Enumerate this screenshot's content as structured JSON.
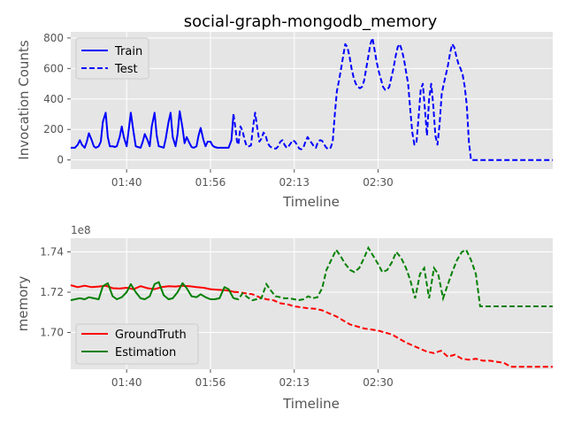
{
  "chart_data": [
    {
      "type": "line",
      "title": "social-graph-mongodb_memory",
      "xlabel": "Timeline",
      "ylabel": "Invocation Counts",
      "xtick_labels": [
        "01:40",
        "01:56",
        "02:13",
        "02:30"
      ],
      "yticks": [
        0,
        200,
        400,
        600,
        800
      ],
      "ylim": [
        -60,
        840
      ],
      "legend": {
        "position": "top-left"
      },
      "series": [
        {
          "name": "Train",
          "color": "#0000ff",
          "style": "solid",
          "x": [
            0,
            3,
            6,
            10,
            13,
            16,
            20,
            23,
            26,
            30,
            33,
            36,
            40,
            43,
            46,
            50,
            53,
            56,
            60,
            63,
            66,
            70,
            73,
            76,
            80,
            83,
            86,
            90,
            93,
            96,
            100,
            103,
            106,
            110,
            113,
            116,
            120,
            123,
            126,
            130,
            133,
            136,
            140,
            143,
            146,
            150,
            153,
            156,
            160,
            163,
            166,
            170,
            173,
            176,
            180,
            183,
            186,
            190,
            193,
            196,
            200,
            203,
            206,
            210,
            213,
            216,
            220,
            223,
            226,
            230,
            233
          ],
          "y": [
            80,
            80,
            80,
            100,
            130,
            100,
            80,
            120,
            175,
            130,
            90,
            80,
            90,
            120,
            250,
            310,
            150,
            90,
            90,
            85,
            90,
            150,
            220,
            150,
            90,
            200,
            310,
            180,
            90,
            85,
            80,
            120,
            170,
            130,
            90,
            220,
            310,
            160,
            90,
            85,
            80,
            140,
            250,
            310,
            150,
            90,
            170,
            320,
            210,
            110,
            150,
            110,
            85,
            80,
            90,
            160,
            210,
            130,
            90,
            120,
            120,
            95,
            85,
            80,
            80,
            80,
            80,
            80,
            80,
            130,
            300
          ]
        },
        {
          "name": "Test",
          "color": "#0000ff",
          "style": "dashed",
          "x": [
            233,
            236,
            238,
            240,
            243,
            246,
            249,
            252,
            255,
            258,
            261,
            264,
            267,
            270,
            273,
            276,
            279,
            282,
            285,
            288,
            291,
            294,
            297,
            300,
            303,
            306,
            309,
            312,
            315,
            318,
            321,
            324,
            327,
            330,
            333,
            336,
            339,
            342,
            345,
            348,
            351,
            354,
            357,
            360,
            363,
            366,
            369,
            372,
            375,
            378,
            381,
            384,
            387,
            390,
            393,
            396,
            399,
            402,
            405,
            408,
            411,
            414,
            417,
            420,
            423,
            426,
            429,
            432,
            435,
            438,
            441,
            444,
            447,
            450,
            453,
            456,
            459,
            462,
            465,
            468,
            471,
            474,
            477,
            480,
            483,
            486,
            489,
            492,
            495,
            498,
            501,
            504,
            507,
            510,
            513,
            516,
            519,
            522,
            525,
            528,
            531,
            534,
            537,
            540,
            543,
            546,
            549,
            552,
            555,
            558,
            561,
            564,
            567,
            570,
            573,
            576,
            579,
            582,
            585,
            588,
            591,
            594,
            597,
            600,
            603,
            606,
            609,
            612,
            615,
            618,
            621,
            624,
            627,
            630,
            633,
            636,
            639,
            642,
            645,
            648,
            651,
            654,
            657,
            660,
            663,
            666,
            669,
            672,
            675,
            678,
            681,
            684,
            687,
            690
          ],
          "y": [
            300,
            200,
            120,
            100,
            220,
            190,
            130,
            90,
            90,
            95,
            220,
            310,
            210,
            120,
            140,
            180,
            160,
            110,
            90,
            80,
            75,
            75,
            90,
            120,
            130,
            100,
            80,
            90,
            110,
            130,
            120,
            100,
            75,
            70,
            80,
            120,
            150,
            130,
            110,
            90,
            80,
            120,
            130,
            125,
            100,
            80,
            70,
            80,
            120,
            300,
            450,
            520,
            600,
            680,
            760,
            740,
            680,
            600,
            540,
            500,
            480,
            470,
            480,
            520,
            600,
            680,
            760,
            800,
            720,
            640,
            580,
            530,
            480,
            460,
            460,
            480,
            540,
            600,
            680,
            740,
            760,
            720,
            660,
            580,
            500,
            330,
            180,
            100,
            120,
            280,
            460,
            500,
            330,
            160,
            400,
            500,
            360,
            160,
            100,
            230,
            430,
            500,
            560,
            620,
            700,
            760,
            740,
            680,
            630,
            600,
            560,
            480,
            360,
            120,
            0,
            0,
            0,
            0,
            0,
            0,
            0,
            0,
            0,
            0,
            0,
            0,
            0,
            0,
            0,
            0,
            0,
            0,
            0,
            0,
            0,
            0,
            0,
            0,
            0,
            0,
            0,
            0,
            0,
            0,
            0,
            0,
            0,
            0,
            0,
            0,
            0,
            0,
            0,
            0
          ]
        }
      ]
    },
    {
      "type": "line",
      "title": "",
      "xlabel": "Timeline",
      "ylabel": "memory",
      "y_offset_label": "1e8",
      "xtick_labels": [
        "01:40",
        "01:56",
        "02:13",
        "02:30"
      ],
      "ytick_labels": [
        "1.70",
        "1.72",
        "1.74"
      ],
      "yticks": [
        1.7,
        1.72,
        1.74
      ],
      "ylim": [
        1.6818,
        1.7468
      ],
      "legend": {
        "position": "bottom-left"
      },
      "series": [
        {
          "name": "GroundTruth",
          "color": "#ff0000",
          "style": "solid_then_dashed",
          "solid_until_x": 233,
          "x": [
            0,
            10,
            20,
            30,
            40,
            50,
            60,
            70,
            80,
            90,
            100,
            110,
            120,
            130,
            140,
            150,
            160,
            170,
            180,
            190,
            200,
            210,
            220,
            230,
            233,
            240,
            250,
            260,
            270,
            280,
            290,
            300,
            310,
            320,
            330,
            340,
            350,
            360,
            370,
            380,
            390,
            400,
            410,
            420,
            430,
            440,
            450,
            460,
            470,
            480,
            490,
            500,
            510,
            520,
            530,
            540,
            550,
            560,
            570,
            580,
            590,
            600,
            610,
            620,
            630,
            640,
            650,
            660,
            670,
            680,
            690
          ],
          "y": [
            1.7235,
            1.7225,
            1.7232,
            1.7225,
            1.7228,
            1.7232,
            1.722,
            1.7218,
            1.7222,
            1.7215,
            1.723,
            1.722,
            1.7215,
            1.7225,
            1.723,
            1.7228,
            1.7232,
            1.723,
            1.7225,
            1.7222,
            1.7215,
            1.7212,
            1.721,
            1.7205,
            1.7202,
            1.72,
            1.7195,
            1.719,
            1.7175,
            1.7165,
            1.716,
            1.7145,
            1.714,
            1.713,
            1.7125,
            1.712,
            1.7118,
            1.711,
            1.7095,
            1.708,
            1.706,
            1.704,
            1.703,
            1.702,
            1.7015,
            1.701,
            1.7,
            1.699,
            1.697,
            1.695,
            1.6935,
            1.692,
            1.6905,
            1.6898,
            1.691,
            1.688,
            1.689,
            1.687,
            1.6865,
            1.687,
            1.686,
            1.686,
            1.6855,
            1.685,
            1.683,
            1.683,
            1.683,
            1.683,
            1.683,
            1.683,
            1.683
          ]
        },
        {
          "name": "Estimation",
          "color": "#008000",
          "style": "solid_then_dashed",
          "solid_until_x": 233,
          "x": [
            0,
            6,
            13,
            20,
            26,
            33,
            40,
            46,
            53,
            60,
            66,
            73,
            80,
            86,
            93,
            100,
            106,
            113,
            120,
            126,
            133,
            140,
            146,
            153,
            160,
            166,
            173,
            180,
            186,
            193,
            200,
            206,
            213,
            220,
            226,
            233,
            240,
            246,
            253,
            260,
            266,
            273,
            280,
            286,
            293,
            300,
            306,
            313,
            320,
            326,
            333,
            340,
            346,
            353,
            360,
            366,
            373,
            380,
            386,
            393,
            400,
            406,
            413,
            420,
            426,
            433,
            440,
            446,
            453,
            460,
            466,
            473,
            480,
            486,
            493,
            500,
            506,
            513,
            520,
            526,
            533,
            540,
            546,
            553,
            560,
            566,
            573,
            580,
            586,
            593,
            600,
            606,
            613,
            620,
            626,
            633,
            640,
            646,
            653,
            660,
            666,
            673,
            680,
            686,
            690
          ],
          "y": [
            1.716,
            1.7165,
            1.717,
            1.7165,
            1.7175,
            1.717,
            1.7165,
            1.723,
            1.7245,
            1.718,
            1.7165,
            1.7175,
            1.72,
            1.724,
            1.72,
            1.717,
            1.7165,
            1.718,
            1.724,
            1.725,
            1.7185,
            1.7165,
            1.717,
            1.72,
            1.7245,
            1.722,
            1.718,
            1.7175,
            1.719,
            1.7175,
            1.7165,
            1.7165,
            1.717,
            1.7225,
            1.7215,
            1.717,
            1.7165,
            1.7195,
            1.7175,
            1.716,
            1.7165,
            1.717,
            1.724,
            1.721,
            1.718,
            1.7175,
            1.717,
            1.717,
            1.7165,
            1.716,
            1.7165,
            1.718,
            1.717,
            1.7175,
            1.722,
            1.731,
            1.736,
            1.741,
            1.738,
            1.734,
            1.731,
            1.73,
            1.732,
            1.737,
            1.742,
            1.738,
            1.734,
            1.73,
            1.731,
            1.735,
            1.74,
            1.737,
            1.732,
            1.726,
            1.717,
            1.729,
            1.732,
            1.717,
            1.732,
            1.729,
            1.717,
            1.724,
            1.73,
            1.736,
            1.74,
            1.741,
            1.736,
            1.729,
            1.713,
            1.713,
            1.713,
            1.713,
            1.713,
            1.713,
            1.713,
            1.713,
            1.713,
            1.713,
            1.713,
            1.713,
            1.713,
            1.713,
            1.713,
            1.713,
            1.713
          ]
        }
      ]
    }
  ]
}
